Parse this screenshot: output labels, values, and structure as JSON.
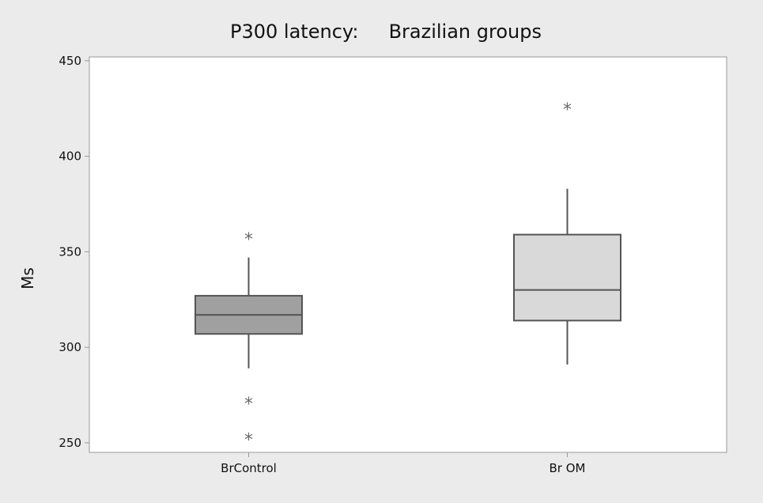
{
  "chart_data": {
    "type": "boxplot",
    "title": "P300 latency:     Brazilian groups",
    "xlabel": "",
    "ylabel": "Ms",
    "ylim": [
      245,
      452
    ],
    "yticks": [
      250,
      300,
      350,
      400,
      450
    ],
    "grid": false,
    "legend": "none",
    "outlier_marker": "*",
    "categories": [
      "BrControl",
      "Br OM"
    ],
    "boxes": [
      {
        "category": "BrControl",
        "whisker_low": 289,
        "q1": 307,
        "median": 317,
        "q3": 327,
        "whisker_high": 347,
        "outliers": [
          358,
          272,
          253
        ],
        "fill": "#a0a0a0"
      },
      {
        "category": "Br OM",
        "whisker_low": 291,
        "q1": 314,
        "median": 330,
        "q3": 359,
        "whisker_high": 383,
        "outliers": [
          426
        ],
        "fill": "#d9d9d9"
      }
    ],
    "colors": {
      "background": "#ebebeb",
      "plot_area": "#ffffff",
      "box_edge": "#555555",
      "outlier": "#6a6a6a"
    }
  }
}
